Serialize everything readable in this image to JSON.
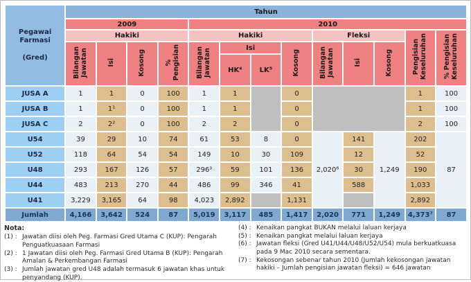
{
  "colors": {
    "header_blue": "#8CB3DA",
    "header_red": "#F08182",
    "header_pink": "#F2C3C1",
    "row_label_blue": "#9CCFF3",
    "cell_light": "#E9F1F6",
    "cell_tan": "#DDBE8F",
    "cell_gray": "#BFBFBF",
    "total_row_blue": "#7FA9D1",
    "total_text": "#17365D"
  },
  "table": {
    "corner": "Pegawai\nFarmasi\n\n(Gred)",
    "tahun": "Tahun",
    "y2009": "2009",
    "y2010": "2010",
    "hakiki": "Hakiki",
    "fleksi": "Fleksi",
    "bilangan": "Bilangan\nJawatan",
    "isi": "Isi",
    "kosong": "Kosong",
    "pct_pengisian": "%\nPengisian",
    "hk": "HK⁴",
    "lk": "LK⁵",
    "peng_kes": "Pengisian\nKeseluruhan",
    "pct_peng_kes": "% Pengisian\nKeseluruhan"
  },
  "rows": [
    {
      "label": "JUSA A",
      "b09": "1",
      "i09": "1",
      "k09": "0",
      "p09": "100",
      "b10": "1",
      "hk": "1",
      "k10": "0",
      "pk": "1",
      "ppk": "100"
    },
    {
      "label": "JUSA B",
      "b09": "1",
      "i09": "1¹",
      "k09": "0",
      "p09": "100",
      "b10": "1",
      "hk": "1",
      "k10": "0",
      "pk": "1",
      "ppk": "100"
    },
    {
      "label": "JUSA C",
      "b09": "2",
      "i09": "2²",
      "k09": "0",
      "p09": "100",
      "b10": "2",
      "hk": "2",
      "k10": "0",
      "pk": "2",
      "ppk": "100"
    },
    {
      "label": "U54",
      "b09": "39",
      "i09": "29",
      "k09": "10",
      "p09": "74",
      "b10": "61",
      "hk": "53",
      "lk": "8",
      "k10": "0",
      "fb": "2,020⁶",
      "fi": "141",
      "fk": "1,249",
      "pk": "202",
      "ppk": "87"
    },
    {
      "label": "U52",
      "b09": "118",
      "i09": "64",
      "k09": "54",
      "p09": "54",
      "b10": "149",
      "hk": "10",
      "lk": "30",
      "k10": "109",
      "fi": "12",
      "pk": "52"
    },
    {
      "label": "U48",
      "b09": "293",
      "i09": "167",
      "k09": "126",
      "p09": "57",
      "b10": "296³",
      "hk": "59",
      "lk": "101",
      "k10": "136",
      "fi": "30",
      "pk": "190"
    },
    {
      "label": "U44",
      "b09": "483",
      "i09": "213",
      "k09": "270",
      "p09": "44",
      "b10": "486",
      "hk": "99",
      "lk": "346",
      "k10": "41",
      "fi": "588",
      "pk": "1,033"
    },
    {
      "label": "U41",
      "b09": "3,229",
      "i09": "3,165",
      "k09": "64",
      "p09": "98",
      "b10": "4,023",
      "hk": "2,892",
      "k10": "1,131",
      "pk": "2,892"
    }
  ],
  "total": {
    "label": "Jumlah",
    "b09": "4,166",
    "i09": "3,642",
    "k09": "524",
    "p09": "87",
    "b10": "5,019",
    "hk": "3,117",
    "lk": "485",
    "k10": "1,417",
    "fb": "2,020",
    "fi": "771",
    "fk": "1,249",
    "pk": "4,373⁷",
    "ppk": "87"
  },
  "nota_title": "Nota:",
  "notes_left": [
    {
      "num": "(1) :",
      "text": "Jawatan diisi oleh Peg. Farmasi Gred Utama C (KUP): Pengarah Penguatkuasaan Farmasi"
    },
    {
      "num": "(2) :",
      "text": "1 Jawatan diisi oleh Peg. Farmasi Gred Utama B (KUP): Pengarah Amalan & Perkembangan Farmasi"
    },
    {
      "num": "(3) :",
      "text": "Jumlah jawatan gred U48 adalah termasuk 6 jawatan khas untuk penyandang (KUP)."
    }
  ],
  "notes_right": [
    {
      "num": "(4) :",
      "text": "Kenaikan pangkat BUKAN melalui laluan kerjaya"
    },
    {
      "num": "(5) :",
      "text": "Kenaikan pangkat melalui laluan kerjaya"
    },
    {
      "num": "(6) :",
      "text": "Jawatan fleksi (Gred U41/U44/U48/U52/U54) mula berkuatkuasa pada 9 Mac 2010 secara sementara."
    },
    {
      "num": "(7) :",
      "text": "Kekosongan sebenar tahun 2010 (Jumlah kekosongan jawatan hakiki – Jumlah pengisian jawatan fleksi) = 646 jawatan"
    }
  ]
}
